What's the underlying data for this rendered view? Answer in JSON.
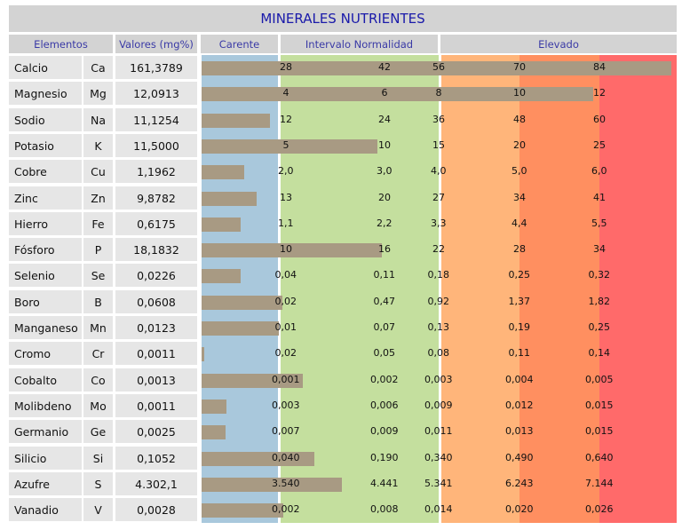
{
  "title": "MINERALES NUTRIENTES",
  "headers": {
    "elementos": "Elementos",
    "valores": "Valores (mg%)",
    "carente": "Carente",
    "intervalo": "Intervalo Normalidad",
    "elevado": "Elevado"
  },
  "colors": {
    "carente": "#a9c8dc",
    "normal": "#c4df9e",
    "elevado_low": "#ffb57a",
    "elevado_mid": "#ff8f60",
    "elevado_high": "#ff6a6a",
    "bar": "#a89a83",
    "title_text": "#1a1aaa"
  },
  "chart_data": {
    "type": "bar",
    "title": "MINERALES NUTRIENTES",
    "scale_positions": [
      "Carente",
      "Intervalo Normalidad",
      "Elevado"
    ],
    "rows": [
      {
        "name": "Calcio",
        "symbol": "Ca",
        "value": "161,3789",
        "scale": [
          "28",
          "42",
          "56",
          "70",
          "84"
        ],
        "bar_level": 6.05
      },
      {
        "name": "Magnesio",
        "symbol": "Mg",
        "value": "12,0913",
        "scale": [
          "4",
          "6",
          "8",
          "10",
          "12"
        ],
        "bar_level": 5.05
      },
      {
        "name": "Sodio",
        "symbol": "Na",
        "value": "11,1254",
        "scale": [
          "12",
          "24",
          "36",
          "48",
          "60"
        ],
        "bar_level": 0.93
      },
      {
        "name": "Potasio",
        "symbol": "K",
        "value": "11,5000",
        "scale": [
          "5",
          "10",
          "15",
          "20",
          "25"
        ],
        "bar_level": 2.3
      },
      {
        "name": "Cobre",
        "symbol": "Cu",
        "value": "1,1962",
        "scale": [
          "2,0",
          "3,0",
          "4,0",
          "5,0",
          "6,0"
        ],
        "bar_level": 0.6
      },
      {
        "name": "Zinc",
        "symbol": "Zn",
        "value": "9,8782",
        "scale": [
          "13",
          "20",
          "27",
          "34",
          "41"
        ],
        "bar_level": 0.76
      },
      {
        "name": "Hierro",
        "symbol": "Fe",
        "value": "0,6175",
        "scale": [
          "1,1",
          "2,2",
          "3,3",
          "4,4",
          "5,5"
        ],
        "bar_level": 0.56
      },
      {
        "name": "Fósforo",
        "symbol": "P",
        "value": "18,1832",
        "scale": [
          "10",
          "16",
          "22",
          "28",
          "34"
        ],
        "bar_level": 2.36
      },
      {
        "name": "Selenio",
        "symbol": "Se",
        "value": "0,0226",
        "scale": [
          "0,04",
          "0,11",
          "0,18",
          "0,25",
          "0,32"
        ],
        "bar_level": 0.56
      },
      {
        "name": "Boro",
        "symbol": "B",
        "value": "0,0608",
        "scale": [
          "0,02",
          "0,47",
          "0,92",
          "1,37",
          "1,82"
        ],
        "bar_level": 1.09
      },
      {
        "name": "Manganeso",
        "symbol": "Mn",
        "value": "0,0123",
        "scale": [
          "0,01",
          "0,07",
          "0,13",
          "0,19",
          "0,25"
        ],
        "bar_level": 1.04
      },
      {
        "name": "Cromo",
        "symbol": "Cr",
        "value": "0,0011",
        "scale": [
          "0,02",
          "0,05",
          "0,08",
          "0,11",
          "0,14"
        ],
        "bar_level": 0.05
      },
      {
        "name": "Cobalto",
        "symbol": "Co",
        "value": "0,0013",
        "scale": [
          "0,001",
          "0,002",
          "0,003",
          "0,004",
          "0,005"
        ],
        "bar_level": 1.35
      },
      {
        "name": "Molibdeno",
        "symbol": "Mo",
        "value": "0,0011",
        "scale": [
          "0,003",
          "0,006",
          "0,009",
          "0,012",
          "0,015"
        ],
        "bar_level": 0.37
      },
      {
        "name": "Germanio",
        "symbol": "Ge",
        "value": "0,0025",
        "scale": [
          "0,007",
          "0,009",
          "0,011",
          "0,013",
          "0,015"
        ],
        "bar_level": 0.36
      },
      {
        "name": "Silicio",
        "symbol": "Si",
        "value": "0,1052",
        "scale": [
          "0,040",
          "0,190",
          "0,340",
          "0,490",
          "0,640"
        ],
        "bar_level": 1.5
      },
      {
        "name": "Azufre",
        "symbol": "S",
        "value": "4.302,1",
        "scale": [
          "3.540",
          "4.441",
          "5.341",
          "6.243",
          "7.144"
        ],
        "bar_level": 1.85
      },
      {
        "name": "Vanadio",
        "symbol": "V",
        "value": "0,0028",
        "scale": [
          "0,002",
          "0,008",
          "0,014",
          "0,020",
          "0,026"
        ],
        "bar_level": 1.1
      }
    ]
  }
}
